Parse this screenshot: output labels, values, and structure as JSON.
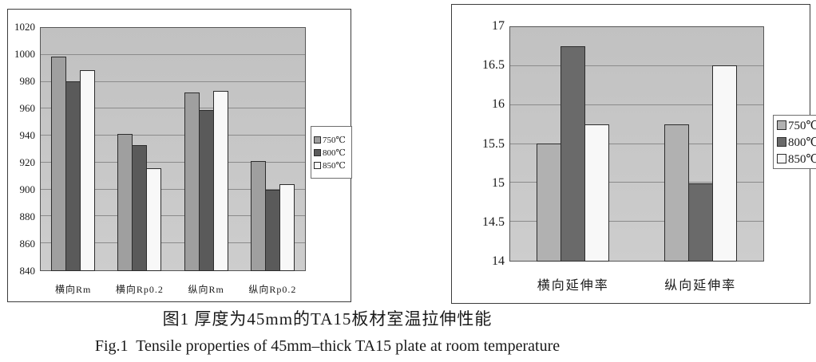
{
  "figure_caption": {
    "zh": "图1 厚度为45mm的TA15板材室温拉伸性能",
    "en": "Fig.1  Tensile properties of 45mm–thick TA15 plate at room temperature"
  },
  "chart_data": [
    {
      "type": "bar",
      "title": "",
      "xlabel": "",
      "ylabel": "",
      "categories": [
        "横向Rm",
        "横向Rp0.2",
        "纵向Rm",
        "纵向Rp0.2"
      ],
      "series": [
        {
          "name": "750℃",
          "color": "#9f9f9f",
          "values": [
            998,
            941,
            972,
            921
          ]
        },
        {
          "name": "800℃",
          "color": "#5a5a5a",
          "values": [
            980,
            933,
            959,
            900
          ]
        },
        {
          "name": "850℃",
          "color": "#f8f8f8",
          "values": [
            988,
            916,
            973,
            904
          ]
        }
      ],
      "ylim": [
        840,
        1020
      ],
      "yticks": [
        840,
        860,
        880,
        900,
        920,
        940,
        960,
        980,
        1000,
        1020
      ],
      "grid": true,
      "legend_position": "right",
      "plot_bg": "#cacaca",
      "gridline_color": "#8b8b8b"
    },
    {
      "type": "bar",
      "title": "",
      "xlabel": "",
      "ylabel": "",
      "categories": [
        "横向延伸率",
        "纵向延伸率"
      ],
      "series": [
        {
          "name": "750℃",
          "color": "#b1b1b1",
          "values": [
            15.5,
            15.75
          ]
        },
        {
          "name": "800℃",
          "color": "#6a6a6a",
          "values": [
            16.75,
            15
          ]
        },
        {
          "name": "850℃",
          "color": "#f8f8f8",
          "values": [
            15.75,
            16.5
          ]
        }
      ],
      "ylim": [
        14,
        17
      ],
      "yticks": [
        14,
        14.5,
        15,
        15.5,
        16,
        16.5,
        17
      ],
      "grid": true,
      "legend_position": "right",
      "plot_bg": "#c8c8c8",
      "gridline_color": "#8b8b8b"
    }
  ]
}
